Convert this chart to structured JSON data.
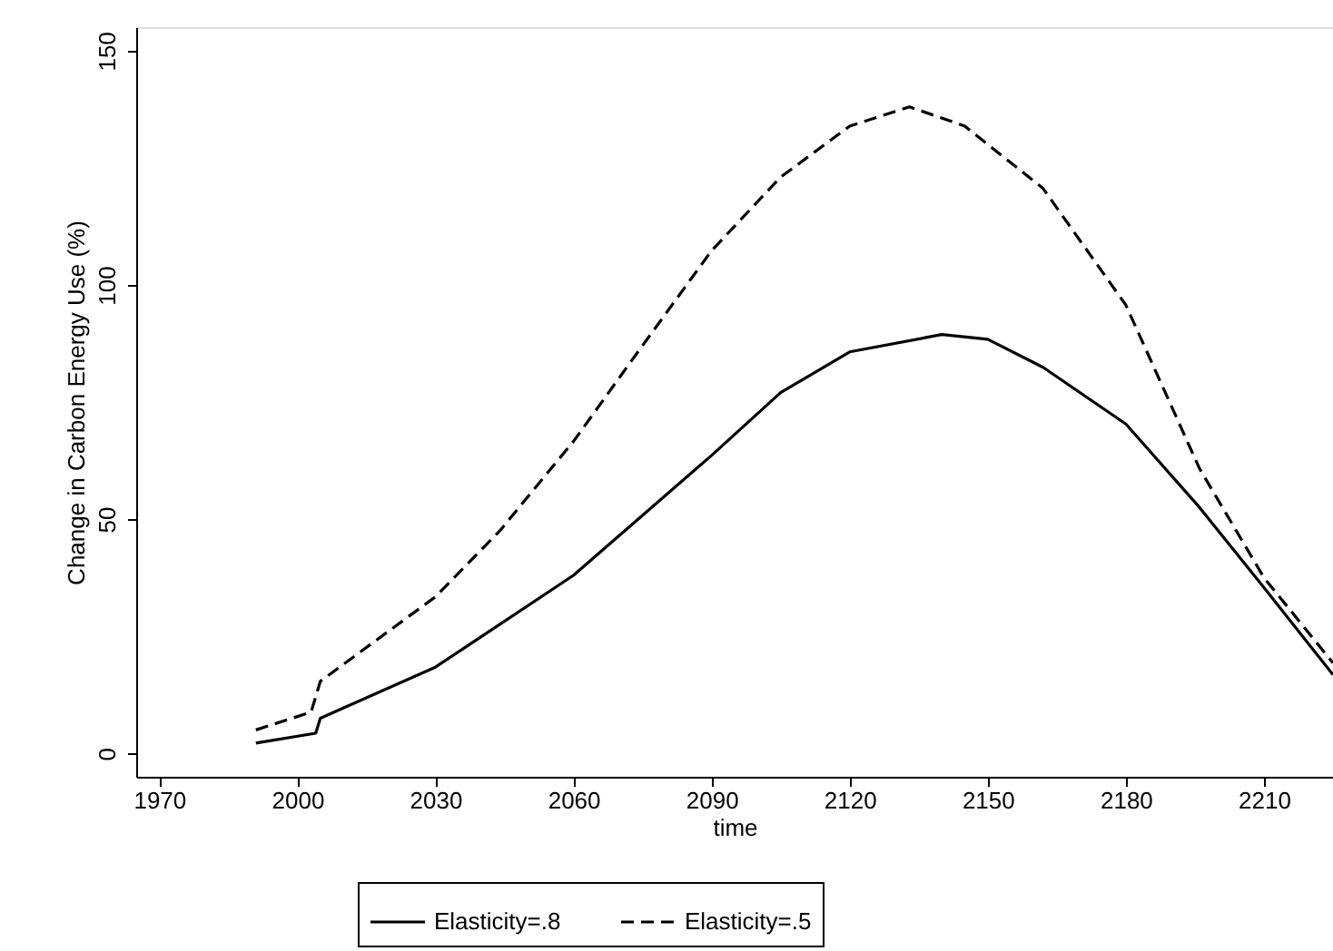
{
  "chart_data": {
    "type": "line",
    "xlabel": "time",
    "ylabel": "Change in Carbon Energy Use (%)",
    "xlim": [
      1965,
      2225
    ],
    "xticks": [
      1970,
      2000,
      2030,
      2060,
      2090,
      2120,
      2150,
      2180,
      2210
    ],
    "ylim": [
      -5,
      155
    ],
    "yticks": [
      0,
      50,
      100,
      150
    ],
    "grid": false,
    "legend": "bottom",
    "marker": "none",
    "series": [
      {
        "name": "Elasticity=.8",
        "color": "#000000",
        "line_style": "solid",
        "x": [
          1991,
          2004,
          2005,
          2030,
          2060,
          2090,
          2105,
          2120,
          2140,
          2150,
          2162,
          2180,
          2196,
          2210,
          2225
        ],
        "values": [
          2.2,
          4.3,
          7.5,
          18.4,
          38,
          63.6,
          77,
          85.7,
          89.4,
          88.4,
          82.4,
          70.3,
          52.5,
          35.4,
          16.8
        ]
      },
      {
        "name": "Elasticity=.5",
        "color": "#000000",
        "line_style": "dashed",
        "x": [
          1991,
          2003,
          2005,
          2030,
          2044,
          2060,
          2074,
          2090,
          2105,
          2120,
          2133,
          2145,
          2162,
          2180,
          2196,
          2210,
          2225
        ],
        "values": [
          5.0,
          8.8,
          15.4,
          33.4,
          47.5,
          66.6,
          85.7,
          107.3,
          123,
          133.9,
          138,
          133.9,
          120.6,
          95.7,
          60.8,
          37.5,
          19.3
        ]
      }
    ]
  }
}
